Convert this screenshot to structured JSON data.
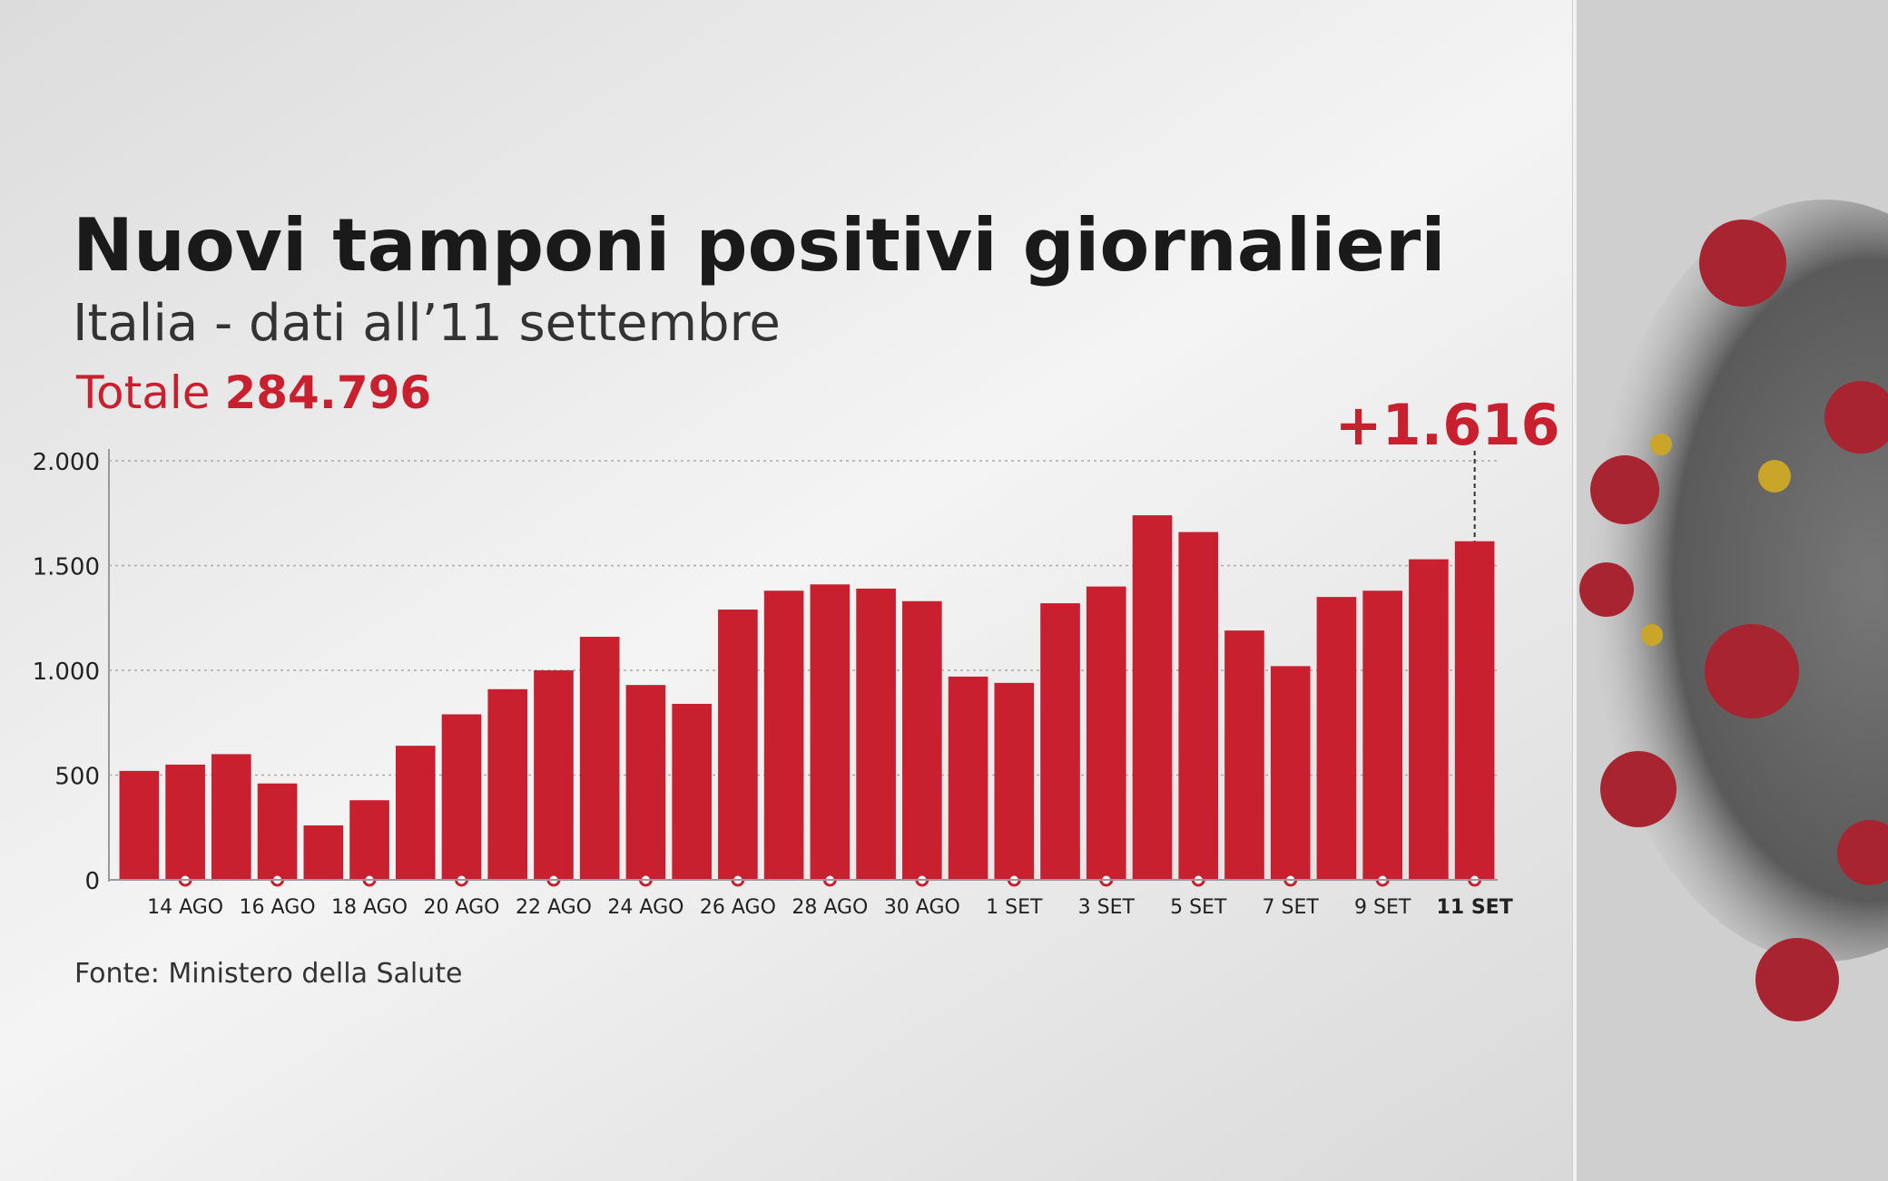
{
  "chart_data": {
    "type": "bar",
    "title": "Nuovi tamponi positivi giornalieri",
    "subtitle": "Italia - dati all’11 settembre",
    "total_label": "Totale",
    "total": "284.796",
    "annotation": "+1.616",
    "source": "Fonte: Ministero della Salute",
    "categories": [
      null,
      "14 AGO",
      null,
      "16 AGO",
      null,
      "18 AGO",
      null,
      "20 AGO",
      null,
      "22 AGO",
      null,
      "24 AGO",
      null,
      "26 AGO",
      null,
      "28 AGO",
      null,
      "30 AGO",
      null,
      "1 SET",
      null,
      "3 SET",
      null,
      "5 SET",
      null,
      "7 SET",
      null,
      "9 SET",
      null,
      "11 SET"
    ],
    "values": [
      520,
      550,
      600,
      460,
      260,
      380,
      640,
      790,
      910,
      1000,
      1160,
      930,
      840,
      1290,
      1380,
      1410,
      1390,
      1330,
      970,
      940,
      1320,
      1400,
      1740,
      1660,
      1190,
      1020,
      1350,
      1380,
      1530,
      1616
    ],
    "color": "#c8202f",
    "ylim": [
      0,
      2000
    ],
    "yticks": [
      0,
      500,
      {
        "value": 1000,
        "label": "1.000"
      },
      {
        "value": 1500,
        "label": "1.500"
      },
      {
        "value": 2000,
        "label": "2.000"
      }
    ],
    "grid": true
  }
}
